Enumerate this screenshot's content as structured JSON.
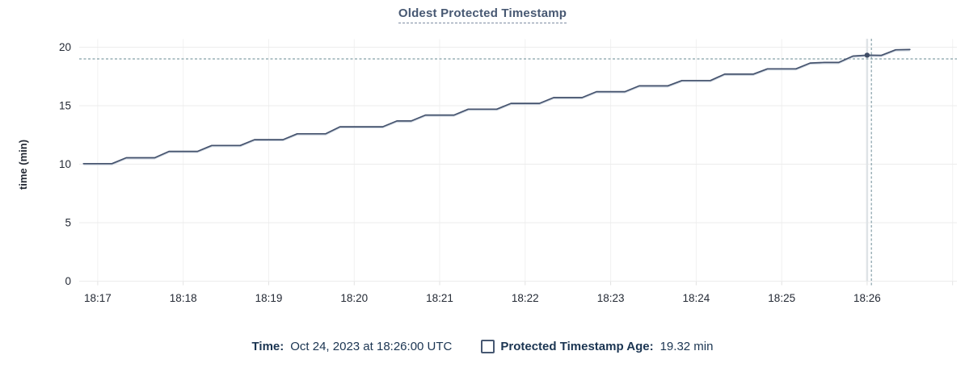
{
  "title": "Oldest Protected Timestamp",
  "colors": {
    "line": "#44526d",
    "line_shadow": "#c8d1dc",
    "title_text": "#475872",
    "axis_text": "#242a35",
    "legend_text": "#1b3552",
    "grid_horizontal": "#ececec",
    "grid_vertical": "#f1f1f1",
    "axis_tick": "#e2e2e2",
    "hover_guide": "#dfe3e6",
    "crosshair": "#85a0a8",
    "dot": "#3f4d66",
    "background": "#ffffff"
  },
  "legend": {
    "time_label": "Time:",
    "time_value": "Oct 24, 2023 at 18:26:00 UTC",
    "series_label": "Protected Timestamp Age:",
    "series_value": "19.32 min"
  },
  "hover": {
    "point_time": "18:26:00",
    "point_value": 19.32,
    "crosshair_x_time": "18:26:03",
    "crosshair_y_value": 19.0
  },
  "chart_data": {
    "type": "line",
    "title": "Oldest Protected Timestamp",
    "xlabel": "",
    "ylabel": "time (min)",
    "ylim": [
      0,
      20
    ],
    "y_ticks": [
      0,
      5,
      10,
      15,
      20
    ],
    "x_window": [
      "18:16:47",
      "18:27:03"
    ],
    "x_tick_labels": [
      "18:17",
      "18:18",
      "18:19",
      "18:20",
      "18:21",
      "18:22",
      "18:23",
      "18:24",
      "18:25",
      "18:26"
    ],
    "x_gridlines": [
      "18:17",
      "18:18",
      "18:19",
      "18:20",
      "18:21",
      "18:22",
      "18:23",
      "18:24",
      "18:25",
      "18:26",
      "18:27"
    ],
    "grid": true,
    "legend_position": "bottom",
    "series": [
      {
        "name": "Protected Timestamp Age",
        "unit": "min",
        "points": [
          [
            "18:16:50",
            10.05
          ],
          [
            "18:17:00",
            10.05
          ],
          [
            "18:17:10",
            10.05
          ],
          [
            "18:17:20",
            10.55
          ],
          [
            "18:17:30",
            10.55
          ],
          [
            "18:17:40",
            10.55
          ],
          [
            "18:17:50",
            11.1
          ],
          [
            "18:18:00",
            11.1
          ],
          [
            "18:18:10",
            11.1
          ],
          [
            "18:18:20",
            11.6
          ],
          [
            "18:18:30",
            11.6
          ],
          [
            "18:18:40",
            11.6
          ],
          [
            "18:18:50",
            12.1
          ],
          [
            "18:19:00",
            12.1
          ],
          [
            "18:19:10",
            12.1
          ],
          [
            "18:19:20",
            12.6
          ],
          [
            "18:19:30",
            12.6
          ],
          [
            "18:19:40",
            12.6
          ],
          [
            "18:19:50",
            13.2
          ],
          [
            "18:20:00",
            13.2
          ],
          [
            "18:20:10",
            13.2
          ],
          [
            "18:20:20",
            13.2
          ],
          [
            "18:20:30",
            13.7
          ],
          [
            "18:20:40",
            13.7
          ],
          [
            "18:20:50",
            14.2
          ],
          [
            "18:21:00",
            14.2
          ],
          [
            "18:21:10",
            14.2
          ],
          [
            "18:21:20",
            14.7
          ],
          [
            "18:21:30",
            14.7
          ],
          [
            "18:21:40",
            14.7
          ],
          [
            "18:21:50",
            15.2
          ],
          [
            "18:22:00",
            15.2
          ],
          [
            "18:22:10",
            15.2
          ],
          [
            "18:22:20",
            15.7
          ],
          [
            "18:22:30",
            15.7
          ],
          [
            "18:22:40",
            15.7
          ],
          [
            "18:22:50",
            16.2
          ],
          [
            "18:23:00",
            16.2
          ],
          [
            "18:23:10",
            16.2
          ],
          [
            "18:23:20",
            16.7
          ],
          [
            "18:23:30",
            16.7
          ],
          [
            "18:23:40",
            16.7
          ],
          [
            "18:23:50",
            17.15
          ],
          [
            "18:24:00",
            17.15
          ],
          [
            "18:24:10",
            17.15
          ],
          [
            "18:24:20",
            17.7
          ],
          [
            "18:24:30",
            17.7
          ],
          [
            "18:24:40",
            17.7
          ],
          [
            "18:24:50",
            18.15
          ],
          [
            "18:25:00",
            18.15
          ],
          [
            "18:25:10",
            18.15
          ],
          [
            "18:25:20",
            18.65
          ],
          [
            "18:25:30",
            18.7
          ],
          [
            "18:25:40",
            18.7
          ],
          [
            "18:25:50",
            19.24
          ],
          [
            "18:26:00",
            19.32
          ],
          [
            "18:26:10",
            19.3
          ],
          [
            "18:26:20",
            19.78
          ],
          [
            "18:26:30",
            19.8
          ]
        ]
      }
    ]
  }
}
